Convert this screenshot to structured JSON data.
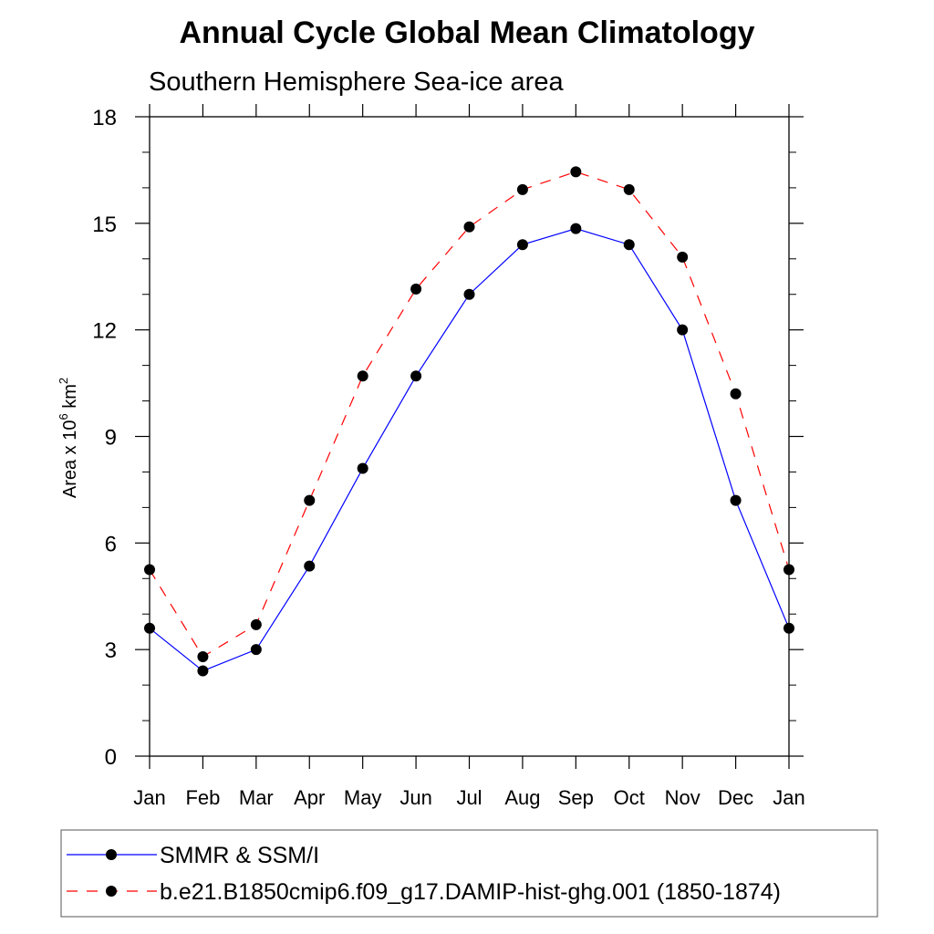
{
  "chart_data": {
    "type": "line",
    "title": "Annual Cycle Global Mean Climatology",
    "subtitle": "Southern Hemisphere Sea-ice area",
    "ylabel": {
      "main": "Area x 10",
      "exp": "6",
      "unit": " km",
      "unit_exp": "2"
    },
    "xlabel": "",
    "categories": [
      "Jan",
      "Feb",
      "Mar",
      "Apr",
      "May",
      "Jun",
      "Jul",
      "Aug",
      "Sep",
      "Oct",
      "Nov",
      "Dec",
      "Jan"
    ],
    "ylim": [
      0,
      18
    ],
    "yticks": [
      0,
      3,
      6,
      9,
      12,
      15,
      18
    ],
    "grid": false,
    "legend_position": "bottom",
    "series": [
      {
        "name": "SMMR & SSM/I",
        "color": "#0000ff",
        "dash": "solid",
        "marker": "filled-circle",
        "values": [
          3.6,
          2.4,
          3.0,
          5.35,
          8.1,
          10.7,
          13.0,
          14.4,
          14.85,
          14.4,
          12.0,
          7.2,
          3.6
        ]
      },
      {
        "name": "b.e21.B1850cmip6.f09_g17.DAMIP-hist-ghg.001 (1850-1874)",
        "color": "#ff0000",
        "dash": "dashed",
        "marker": "filled-circle",
        "values": [
          5.25,
          2.8,
          3.7,
          7.2,
          10.7,
          13.15,
          14.9,
          15.95,
          16.45,
          15.95,
          14.05,
          10.2,
          5.25
        ]
      }
    ]
  }
}
